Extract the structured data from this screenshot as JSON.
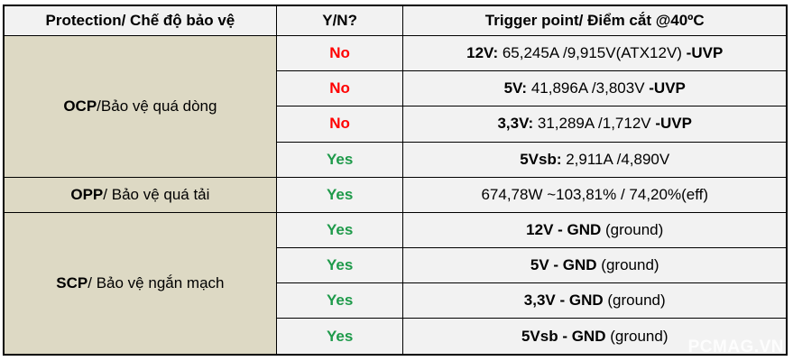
{
  "headers": [
    "Protection/ Chế độ bảo vệ",
    "Y/N?",
    "Trigger point/ Điểm cắt @40ºC"
  ],
  "colors": {
    "category_bg": "#ddd9c4",
    "cell_bg": "#f2f2f2",
    "no": "#ff0000",
    "yes": "#1e9a4a"
  },
  "groups": [
    {
      "abbr": "OCP",
      "label": "/Bảo vệ quá dòng",
      "rows": [
        {
          "yn": "No",
          "bold": "12V:",
          "text": " 65,245A /9,915V(ATX12V) ",
          "suffix": "-UVP"
        },
        {
          "yn": "No",
          "bold": "5V:",
          "text": " 41,896A /3,803V ",
          "suffix": "-UVP"
        },
        {
          "yn": "No",
          "bold": "3,3V:",
          "text": " 31,289A /1,712V ",
          "suffix": "-UVP"
        },
        {
          "yn": "Yes",
          "bold": "5Vsb:",
          "text": " 2,911A /4,890V",
          "suffix": ""
        }
      ]
    },
    {
      "abbr": "OPP",
      "label": "/ Bảo vệ quá tải",
      "rows": [
        {
          "yn": "Yes",
          "bold": "",
          "text": "674,78W ~103,81% / 74,20%(eff)",
          "suffix": ""
        }
      ]
    },
    {
      "abbr": "SCP",
      "label": "/ Bảo vệ ngắn mạch",
      "rows": [
        {
          "yn": "Yes",
          "bold": "12V - GND",
          "text": " (ground)",
          "suffix": ""
        },
        {
          "yn": "Yes",
          "bold": "5V - GND",
          "text": " (ground)",
          "suffix": ""
        },
        {
          "yn": "Yes",
          "bold": "3,3V - GND",
          "text": " (ground)",
          "suffix": ""
        },
        {
          "yn": "Yes",
          "bold": "5Vsb - GND",
          "text": " (ground)",
          "suffix": ""
        }
      ]
    }
  ],
  "watermark": "PCMAG.VN"
}
